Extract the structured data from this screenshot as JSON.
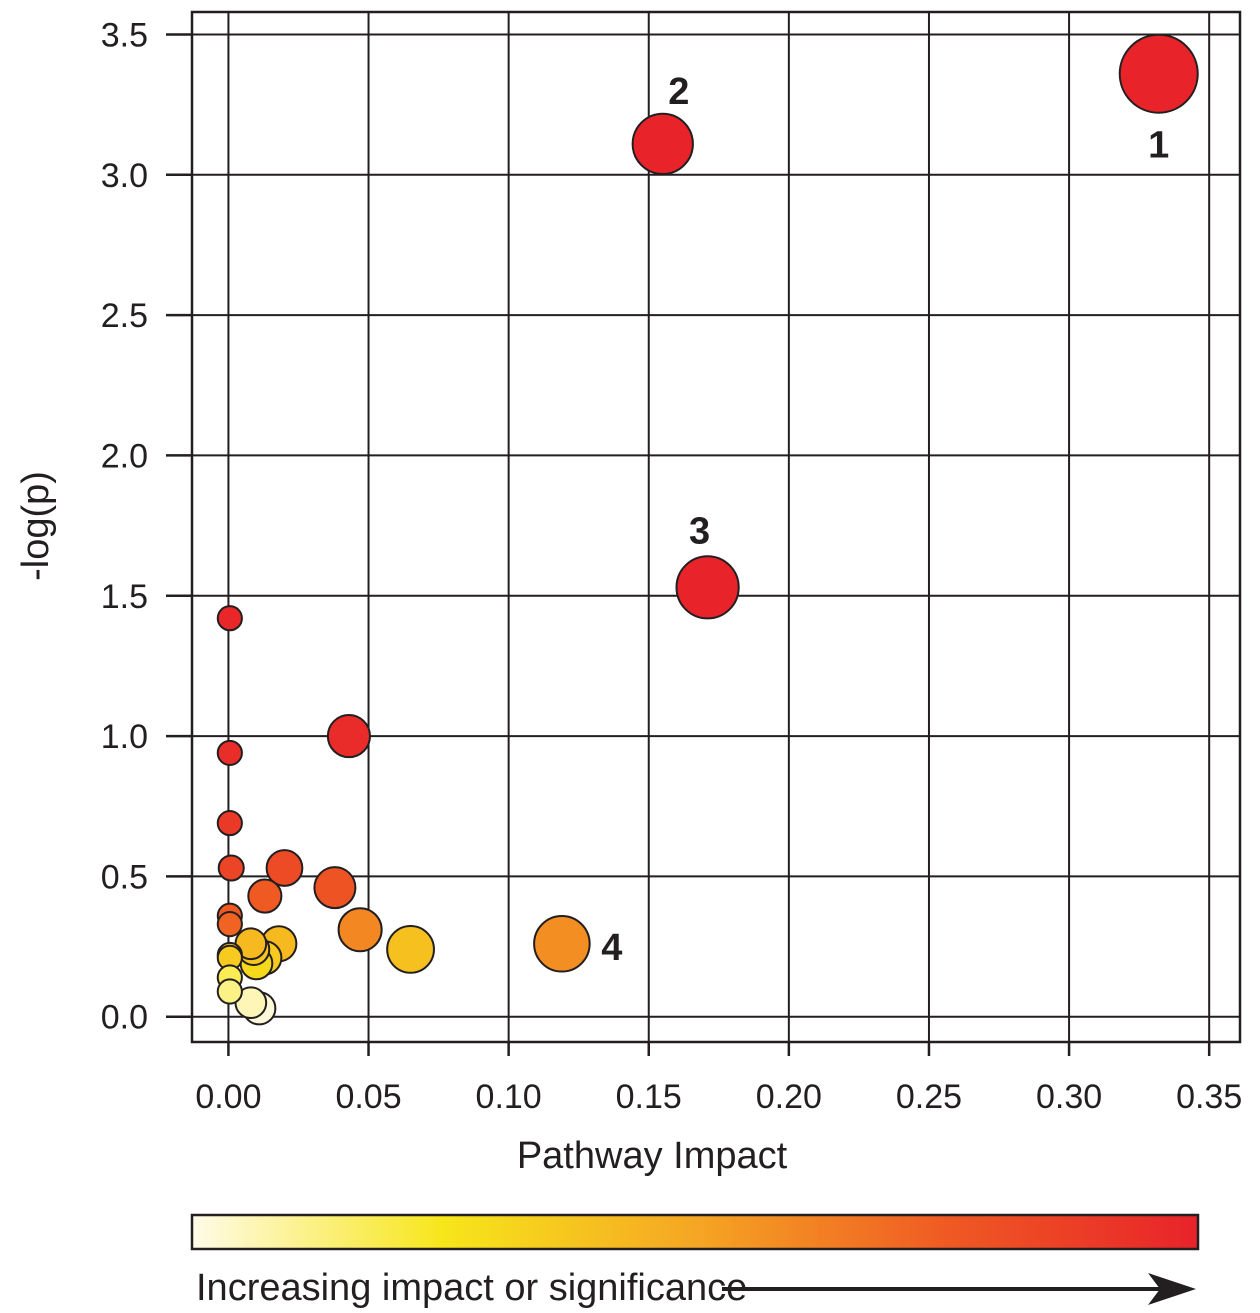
{
  "chart_data": {
    "type": "scatter",
    "xlabel": "Pathway Impact",
    "ylabel": "-log(p)",
    "xlim": [
      -0.013,
      0.361
    ],
    "ylim": [
      -0.09,
      3.58
    ],
    "xticks": [
      "0.00",
      "0.05",
      "0.10",
      "0.15",
      "0.20",
      "0.25",
      "0.30",
      "0.35"
    ],
    "xtick_values": [
      0,
      0.05,
      0.1,
      0.15,
      0.2,
      0.25,
      0.3,
      0.35
    ],
    "yticks": [
      "0.0",
      "0.5",
      "1.0",
      "1.5",
      "2.0",
      "2.5",
      "3.0",
      "3.5"
    ],
    "ytick_values": [
      0,
      0.5,
      1,
      1.5,
      2,
      2.5,
      3,
      3.5
    ],
    "grid": true,
    "marker_edge_color": "#231f20",
    "colormap": [
      "#fffbe8",
      "#f7e61a",
      "#f5a623",
      "#ef5a23",
      "#e8232a"
    ],
    "colorbar_caption": "Increasing impact or significance",
    "points": [
      {
        "x": 0.332,
        "y": 3.36,
        "impact_level": 1.0,
        "label": "1"
      },
      {
        "x": 0.155,
        "y": 3.11,
        "impact_level": 1.0,
        "label": "2"
      },
      {
        "x": 0.171,
        "y": 1.53,
        "impact_level": 1.0,
        "label": "3"
      },
      {
        "x": 0.119,
        "y": 0.26,
        "impact_level": 0.58,
        "label": "4"
      },
      {
        "x": 0.043,
        "y": 1.0,
        "impact_level": 0.96,
        "label": ""
      },
      {
        "x": 0.0005,
        "y": 1.42,
        "impact_level": 0.98,
        "label": ""
      },
      {
        "x": 0.0005,
        "y": 0.94,
        "impact_level": 0.95,
        "label": ""
      },
      {
        "x": 0.0005,
        "y": 0.69,
        "impact_level": 0.9,
        "label": ""
      },
      {
        "x": 0.001,
        "y": 0.53,
        "impact_level": 0.85,
        "label": ""
      },
      {
        "x": 0.0005,
        "y": 0.36,
        "impact_level": 0.75,
        "label": ""
      },
      {
        "x": 0.0005,
        "y": 0.33,
        "impact_level": 0.72,
        "label": ""
      },
      {
        "x": 0.02,
        "y": 0.53,
        "impact_level": 0.82,
        "label": ""
      },
      {
        "x": 0.013,
        "y": 0.43,
        "impact_level": 0.75,
        "label": ""
      },
      {
        "x": 0.038,
        "y": 0.46,
        "impact_level": 0.78,
        "label": ""
      },
      {
        "x": 0.047,
        "y": 0.31,
        "impact_level": 0.6,
        "label": ""
      },
      {
        "x": 0.065,
        "y": 0.24,
        "impact_level": 0.4,
        "label": ""
      },
      {
        "x": 0.018,
        "y": 0.26,
        "impact_level": 0.42,
        "label": ""
      },
      {
        "x": 0.008,
        "y": 0.26,
        "impact_level": 0.42,
        "label": ""
      },
      {
        "x": 0.009,
        "y": 0.24,
        "impact_level": 0.38,
        "label": ""
      },
      {
        "x": 0.013,
        "y": 0.21,
        "impact_level": 0.36,
        "label": ""
      },
      {
        "x": 0.01,
        "y": 0.19,
        "impact_level": 0.3,
        "label": ""
      },
      {
        "x": 0.0005,
        "y": 0.22,
        "impact_level": 0.38,
        "label": ""
      },
      {
        "x": 0.0005,
        "y": 0.21,
        "impact_level": 0.36,
        "label": ""
      },
      {
        "x": 0.0005,
        "y": 0.14,
        "impact_level": 0.18,
        "label": ""
      },
      {
        "x": 0.0005,
        "y": 0.09,
        "impact_level": 0.12,
        "label": ""
      },
      {
        "x": 0.008,
        "y": 0.05,
        "impact_level": 0.06,
        "label": ""
      },
      {
        "x": 0.011,
        "y": 0.03,
        "impact_level": 0.02,
        "label": ""
      }
    ]
  }
}
